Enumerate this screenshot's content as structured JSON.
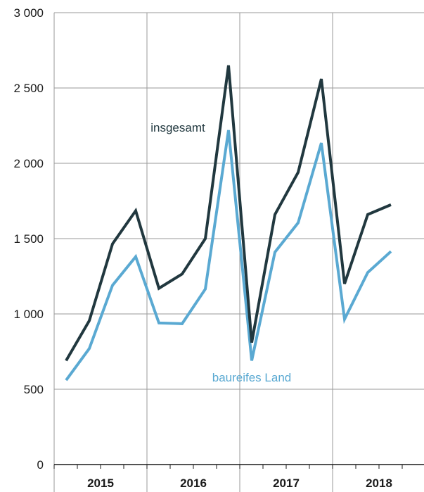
{
  "chart_data": {
    "type": "line",
    "title": "",
    "xlabel": "",
    "ylabel": "",
    "ylim": [
      0,
      3000
    ],
    "y_ticks": [
      0,
      500,
      1000,
      1500,
      2000,
      2500,
      3000
    ],
    "y_tick_labels": [
      "0",
      "500",
      "1 000",
      "1 500",
      "2 000",
      "2 500",
      "3 000"
    ],
    "year_labels": [
      "2015",
      "2016",
      "2017",
      "2018"
    ],
    "grid": true,
    "x": [
      "2015 Q1",
      "2015 Q2",
      "2015 Q3",
      "2015 Q4",
      "2016 Q1",
      "2016 Q2",
      "2016 Q3",
      "2016 Q4",
      "2017 Q1",
      "2017 Q2",
      "2017 Q3",
      "2017 Q4",
      "2018 Q1",
      "2018 Q2",
      "2018 Q3"
    ],
    "series": [
      {
        "name": "insgesamt",
        "color": "#21383f",
        "values": [
          690,
          955,
          1465,
          1685,
          1170,
          1265,
          1500,
          2650,
          810,
          1660,
          1940,
          2560,
          1200,
          1660,
          1725
        ]
      },
      {
        "name": "baureifes Land",
        "color": "#5aa9d2",
        "values": [
          560,
          770,
          1190,
          1380,
          940,
          935,
          1165,
          2220,
          690,
          1410,
          1605,
          2135,
          965,
          1275,
          1415
        ]
      }
    ]
  }
}
